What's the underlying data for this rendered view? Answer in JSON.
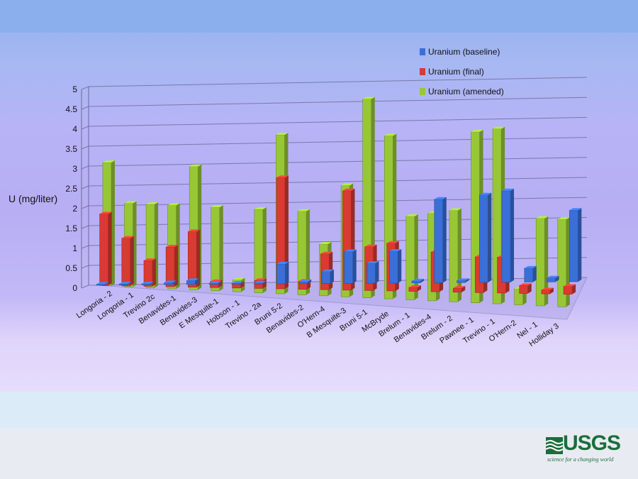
{
  "slide": {
    "logo_text": "USGS",
    "logo_tagline": "science for a changing world"
  },
  "chart_data": {
    "type": "bar",
    "title": "",
    "xlabel": "",
    "ylabel": "U (mg/liter)",
    "ylim": [
      0,
      5
    ],
    "yticks": [
      "0",
      "0.5",
      "1",
      "1.5",
      "2",
      "2.5",
      "3",
      "3.5",
      "4",
      "4.5",
      "5"
    ],
    "legend_position": "top-right",
    "categories": [
      "Longoria - 2",
      "Longoria - 1",
      "Trevino 2c",
      "Benavides-1",
      "Benavides-3",
      "E Mesquite-1",
      "Hobson - 1",
      "Trevino - 2a",
      "Bruni 5-2",
      "Benavides-2",
      "O'Hern-4",
      "B Mesquite-3",
      "Bruni 5-1",
      "McBryde",
      "Brelum - 1",
      "Benavides-4",
      "Brelum - 2",
      "Pawnee - 1",
      "Trevino - 1",
      "O'Hern-2",
      "Nel - 1",
      "Holliday 3"
    ],
    "series": [
      {
        "name": "Uranium (baseline)",
        "color": "#3a6fd8",
        "values": [
          0.02,
          0.02,
          0.02,
          0.05,
          0.1,
          0.02,
          0.02,
          0.02,
          0.5,
          0.05,
          0.3,
          0.8,
          0.5,
          0.8,
          0.05,
          2.1,
          0.05,
          2.2,
          2.3,
          0.35,
          0.1,
          1.8
        ]
      },
      {
        "name": "Uranium (final)",
        "color": "#d93a32",
        "values": [
          1.8,
          1.2,
          0.65,
          1.0,
          1.4,
          0.15,
          0.1,
          0.2,
          2.8,
          0.2,
          0.9,
          2.5,
          1.1,
          1.2,
          0.1,
          1.0,
          0.1,
          0.9,
          0.9,
          0.2,
          0.1,
          0.2
        ]
      },
      {
        "name": "Uranium (amended)",
        "color": "#98c736",
        "values": [
          3.1,
          2.1,
          2.1,
          2.1,
          3.1,
          2.1,
          0.3,
          2.1,
          4.0,
          2.1,
          1.3,
          2.8,
          5.0,
          4.1,
          2.1,
          2.2,
          2.3,
          4.3,
          4.4,
          0.4,
          2.2,
          2.2
        ]
      }
    ]
  }
}
